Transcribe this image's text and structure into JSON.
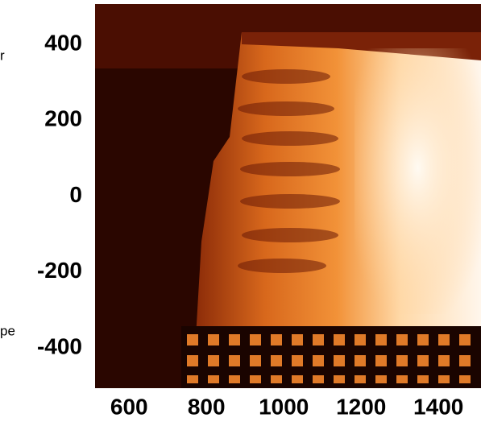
{
  "chart_data": {
    "type": "image",
    "side_labels": [
      "r",
      "pe"
    ],
    "xlim": [
      512,
      1510
    ],
    "xticks": [
      600,
      800,
      1000,
      1200,
      1400
    ],
    "ylim": [
      -506,
      506
    ],
    "yticks": [
      400,
      200,
      0,
      -200,
      -400
    ]
  }
}
